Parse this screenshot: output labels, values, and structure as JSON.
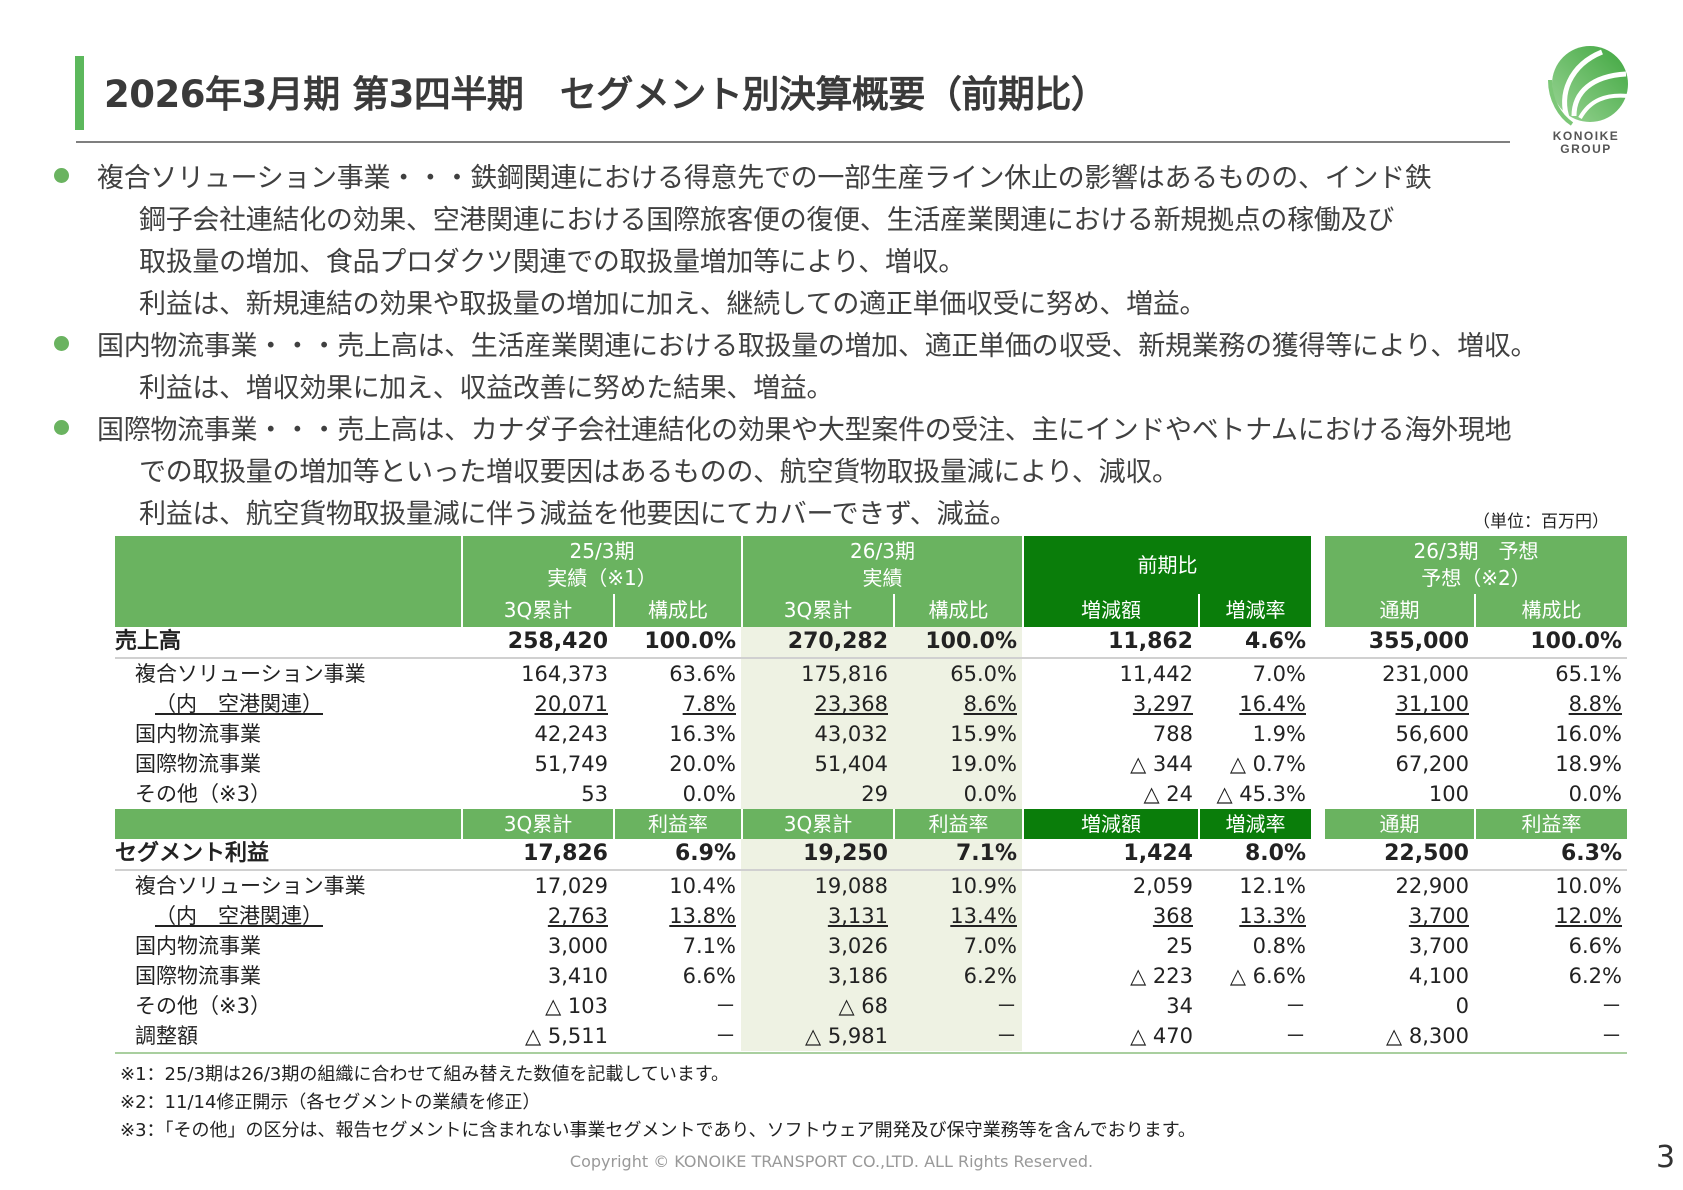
{
  "title": "2026年3月期 第3四半期　セグメント別決算概要（前期比）",
  "logo": {
    "line1": "KONOIKE",
    "line2": "GROUP",
    "colors": [
      "#5cb85c",
      "#8fd18a"
    ]
  },
  "colors": {
    "accent": "#5cb85c",
    "header": "#6ab360",
    "header_dark": "#0a7d0a",
    "highlight": "#eef2e3"
  },
  "bullets": [
    {
      "lines": [
        "複合ソリューション事業・・・鉄鋼関連における得意先での一部生産ライン休止の影響はあるものの、インド鉄",
        "鋼子会社連結化の効果、空港関連における国際旅客便の復便、生活産業関連における新規拠点の稼働及び",
        "取扱量の増加、食品プロダクツ関連での取扱量増加等により、増収。",
        "利益は、新規連結の効果や取扱量の増加に加え、継続しての適正単価収受に努め、増益。"
      ]
    },
    {
      "lines": [
        "国内物流事業・・・売上高は、生活産業関連における取扱量の増加、適正単価の収受、新規業務の獲得等により、増収。",
        "利益は、増収効果に加え、収益改善に努めた結果、増益。"
      ]
    },
    {
      "lines": [
        "国際物流事業・・・売上高は、カナダ子会社連結化の効果や大型案件の受注、主にインドやベトナムにおける海外現地",
        "での取扱量の増加等といった増収要因はあるものの、航空貨物取扱量減により、減収。",
        "利益は、航空貨物取扱量減に伴う減益を他要因にてカバーできず、減益。"
      ]
    }
  ],
  "unit": "（単位：百万円）",
  "table": {
    "groups": [
      {
        "line1": "25/3期",
        "line2": "実績（※1）"
      },
      {
        "line1": "26/3期",
        "line2": "実績"
      },
      {
        "line1": "前期比",
        "line2": ""
      },
      {
        "line1": "26/3期　予想",
        "line2": "予想（※2）"
      }
    ],
    "sales_subheaders": [
      "3Q累計",
      "構成比",
      "3Q累計",
      "構成比",
      "増減額",
      "増減率",
      "通期",
      "構成比"
    ],
    "profit_subheaders": [
      "3Q累計",
      "利益率",
      "3Q累計",
      "利益率",
      "増減額",
      "増減率",
      "通期",
      "利益率"
    ],
    "sales_rows": [
      {
        "label": "売上高",
        "values": [
          "258,420",
          "100.0%",
          "270,282",
          "100.0%",
          "11,862",
          "4.6%",
          "355,000",
          "100.0%"
        ],
        "type": "total"
      },
      {
        "label": "複合ソリューション事業",
        "values": [
          "164,373",
          "63.6%",
          "175,816",
          "65.0%",
          "11,442",
          "7.0%",
          "231,000",
          "65.1%"
        ],
        "type": "item"
      },
      {
        "label": "（内　空港関連）",
        "values": [
          "20,071",
          "7.8%",
          "23,368",
          "8.6%",
          "3,297",
          "16.4%",
          "31,100",
          "8.8%"
        ],
        "type": "sub"
      },
      {
        "label": "国内物流事業",
        "values": [
          "42,243",
          "16.3%",
          "43,032",
          "15.9%",
          "788",
          "1.9%",
          "56,600",
          "16.0%"
        ],
        "type": "item"
      },
      {
        "label": "国際物流事業",
        "values": [
          "51,749",
          "20.0%",
          "51,404",
          "19.0%",
          "△ 344",
          "△ 0.7%",
          "67,200",
          "18.9%"
        ],
        "type": "item"
      },
      {
        "label": "その他（※3）",
        "values": [
          "53",
          "0.0%",
          "29",
          "0.0%",
          "△ 24",
          "△ 45.3%",
          "100",
          "0.0%"
        ],
        "type": "item"
      }
    ],
    "profit_rows": [
      {
        "label": "セグメント利益",
        "values": [
          "17,826",
          "6.9%",
          "19,250",
          "7.1%",
          "1,424",
          "8.0%",
          "22,500",
          "6.3%"
        ],
        "type": "total"
      },
      {
        "label": "複合ソリューション事業",
        "values": [
          "17,029",
          "10.4%",
          "19,088",
          "10.9%",
          "2,059",
          "12.1%",
          "22,900",
          "10.0%"
        ],
        "type": "item"
      },
      {
        "label": "（内　空港関連）",
        "values": [
          "2,763",
          "13.8%",
          "3,131",
          "13.4%",
          "368",
          "13.3%",
          "3,700",
          "12.0%"
        ],
        "type": "sub"
      },
      {
        "label": "国内物流事業",
        "values": [
          "3,000",
          "7.1%",
          "3,026",
          "7.0%",
          "25",
          "0.8%",
          "3,700",
          "6.6%"
        ],
        "type": "item"
      },
      {
        "label": "国際物流事業",
        "values": [
          "3,410",
          "6.6%",
          "3,186",
          "6.2%",
          "△ 223",
          "△ 6.6%",
          "4,100",
          "6.2%"
        ],
        "type": "item"
      },
      {
        "label": "その他（※3）",
        "values": [
          "△ 103",
          "－",
          "△ 68",
          "－",
          "34",
          "－",
          "0",
          "－"
        ],
        "type": "item"
      },
      {
        "label": "調整額",
        "values": [
          "△ 5,511",
          "－",
          "△ 5,981",
          "－",
          "△ 470",
          "－",
          "△ 8,300",
          "－"
        ],
        "type": "item"
      }
    ]
  },
  "footnotes": [
    "※1：25/3期は26/3期の組織に合わせて組み替えた数値を記載しています。",
    "※2：11/14修正開示（各セグメントの業績を修正）",
    "※3：「その他」の区分は、報告セグメントに含まれない事業セグメントであり、ソフトウェア開発及び保守業務等を含んでおります。"
  ],
  "copyright": "Copyright © KONOIKE TRANSPORT CO.,LTD.  ALL Rights Reserved.",
  "page_number": "3"
}
